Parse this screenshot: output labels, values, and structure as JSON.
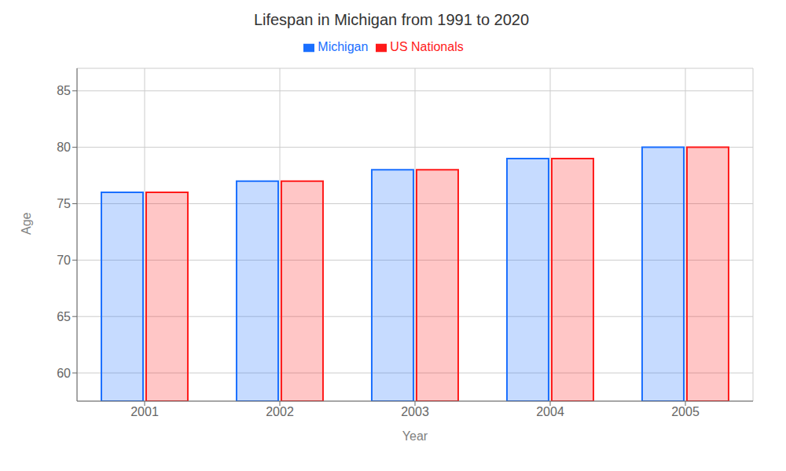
{
  "chart_data": {
    "type": "bar",
    "title": "Lifespan in Michigan from 1991 to 2020",
    "x_label": "Year",
    "y_label": "Age",
    "categories": [
      "2001",
      "2002",
      "2003",
      "2004",
      "2005"
    ],
    "series": [
      {
        "name": "Michigan",
        "color": "#1a6fff",
        "values": [
          76.0,
          77.0,
          78.0,
          79.0,
          80.0
        ]
      },
      {
        "name": "US Nationals",
        "color": "#ff1a1a",
        "values": [
          76.0,
          77.0,
          78.0,
          79.0,
          80.0
        ]
      }
    ],
    "ylim": [
      57.5,
      87
    ],
    "yticks": [
      60,
      65,
      70,
      75,
      80,
      85
    ],
    "grid": true,
    "legend": "top"
  }
}
